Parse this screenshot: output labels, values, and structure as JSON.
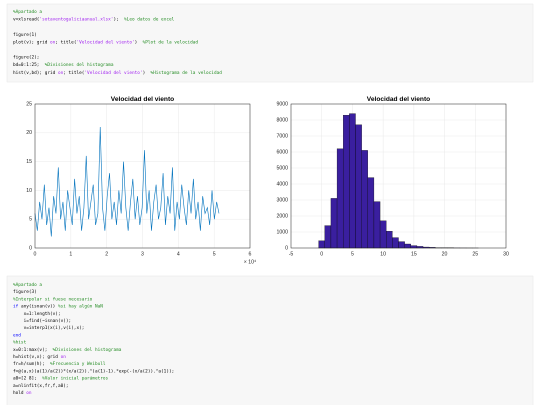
{
  "code_blocks": [
    {
      "lines": [
        [
          {
            "t": "%Apartado a",
            "c": "#228b22"
          }
        ],
        [
          {
            "t": "v=xlsread(",
            "c": "#000000"
          },
          {
            "t": "'sotaventogaliciaanual.xlsx'",
            "c": "#a020f0"
          },
          {
            "t": ");  ",
            "c": "#000000"
          },
          {
            "t": "%Leo datos de excel",
            "c": "#228b22"
          }
        ],
        [],
        [
          {
            "t": "figure(1)",
            "c": "#000000"
          }
        ],
        [
          {
            "t": "plot(v); grid ",
            "c": "#000000"
          },
          {
            "t": "on",
            "c": "#a020f0"
          },
          {
            "t": "; title(",
            "c": "#000000"
          },
          {
            "t": "'Velocidad del viento'",
            "c": "#a020f0"
          },
          {
            "t": ")  ",
            "c": "#000000"
          },
          {
            "t": "%Plot de la velocidad",
            "c": "#228b22"
          }
        ],
        [],
        [
          {
            "t": "figure(2);",
            "c": "#000000"
          }
        ],
        [
          {
            "t": "bd=0:1:25;  ",
            "c": "#000000"
          },
          {
            "t": "%Divisiones del histograma",
            "c": "#228b22"
          }
        ],
        [
          {
            "t": "hist(v,bd); grid ",
            "c": "#000000"
          },
          {
            "t": "on",
            "c": "#a020f0"
          },
          {
            "t": "; title(",
            "c": "#000000"
          },
          {
            "t": "'Velocidad del viento'",
            "c": "#a020f0"
          },
          {
            "t": ")  ",
            "c": "#000000"
          },
          {
            "t": "%Histograma de la velocidad",
            "c": "#228b22"
          }
        ]
      ]
    },
    {
      "lines": [
        [
          {
            "t": "%Apartado a",
            "c": "#228b22"
          }
        ],
        [
          {
            "t": "figure(3)",
            "c": "#000000"
          }
        ],
        [
          {
            "t": "%Interpolar si fuese necesario",
            "c": "#228b22"
          }
        ],
        [
          {
            "t": "if",
            "c": "#0000ff"
          },
          {
            "t": " any(isnan(v)) ",
            "c": "#000000"
          },
          {
            "t": "%si hay algún NaN",
            "c": "#228b22"
          }
        ],
        [
          {
            "t": "    x=1:length(v);",
            "c": "#000000"
          }
        ],
        [
          {
            "t": "    i=find(~isnan(v));",
            "c": "#000000"
          }
        ],
        [
          {
            "t": "    v=interp1(x(i),v(i),x);",
            "c": "#000000"
          }
        ],
        [
          {
            "t": "end",
            "c": "#0000ff"
          }
        ],
        [
          {
            "t": "%hist",
            "c": "#228b22"
          }
        ],
        [
          {
            "t": "x=0:1:max(v);  ",
            "c": "#000000"
          },
          {
            "t": "%Divisiones del histograma",
            "c": "#228b22"
          }
        ],
        [
          {
            "t": "h=hist(v,x); grid ",
            "c": "#000000"
          },
          {
            "t": "on",
            "c": "#a020f0"
          }
        ],
        [
          {
            "t": "fr=h/sum(h);  ",
            "c": "#000000"
          },
          {
            "t": "%Frecuencia y Weibull",
            "c": "#228b22"
          }
        ],
        [
          {
            "t": "f=@(a,x)(a(1)/a(2))*(x/a(2)).^(a(1)-1).*exp(-(x/a(2)).^a(1));",
            "c": "#000000"
          }
        ],
        [
          {
            "t": "a0=[2 8];  ",
            "c": "#000000"
          },
          {
            "t": "%Valor inicial parámetros",
            "c": "#228b22"
          }
        ],
        [
          {
            "t": "a=nlinfit(x,fr,f,a0);",
            "c": "#000000"
          }
        ],
        [
          {
            "t": "hold ",
            "c": "#000000"
          },
          {
            "t": "on",
            "c": "#a020f0"
          }
        ]
      ]
    }
  ],
  "chart_data": [
    {
      "type": "line",
      "title": "Velocidad del viento",
      "x": [
        0,
        650,
        1300,
        1950,
        2600,
        3250,
        3900,
        4550,
        5200,
        5850,
        6500,
        7150,
        7800,
        8450,
        9100,
        9750,
        10400,
        11050,
        11700,
        12350,
        13000,
        13650,
        14300,
        14950,
        15600,
        16250,
        16900,
        17550,
        18200,
        18850,
        19500,
        20150,
        20800,
        21450,
        22100,
        22750,
        23400,
        24050,
        24700,
        25350,
        26000,
        26650,
        27300,
        27950,
        28600,
        29250,
        29900,
        30550,
        31200,
        31850,
        32500,
        33150,
        33800,
        34450,
        35100,
        35750,
        36400,
        37050,
        37700,
        38350,
        39000,
        39650,
        40300,
        40950,
        41600,
        42250,
        42900,
        43550,
        44200,
        44850,
        45500,
        46150,
        46800,
        47450,
        48100,
        48750,
        49400,
        50050,
        50700,
        51350
      ],
      "series": [
        {
          "color": "#0072bd",
          "values": [
            6,
            3,
            8,
            5,
            11,
            4,
            7,
            2,
            9,
            6,
            14,
            5,
            8,
            3,
            10,
            7,
            4,
            12,
            6,
            9,
            3,
            7,
            16,
            5,
            8,
            11,
            4,
            6,
            21,
            7,
            3,
            9,
            13,
            5,
            8,
            4,
            10,
            6,
            15,
            7,
            3,
            8,
            12,
            5,
            9,
            4,
            7,
            17,
            6,
            10,
            3,
            8,
            11,
            5,
            7,
            13,
            4,
            9,
            6,
            14,
            3,
            8,
            5,
            11,
            7,
            4,
            10,
            6,
            12,
            5,
            8,
            3,
            9,
            6,
            7,
            4,
            10,
            5,
            8,
            6
          ]
        }
      ],
      "xlim": [
        0,
        60000
      ],
      "xticks": [
        0,
        {
          "value": 10000,
          "label": "1"
        },
        {
          "value": 20000,
          "label": "2"
        },
        {
          "value": 30000,
          "label": "3"
        },
        {
          "value": 40000,
          "label": "4"
        },
        {
          "value": 50000,
          "label": "5"
        },
        {
          "value": 60000,
          "label": "6"
        }
      ],
      "x_exponent": "× 10⁴",
      "ylim": [
        0,
        25
      ],
      "yticks": [
        0,
        5,
        10,
        15,
        20,
        25
      ],
      "grid": true
    },
    {
      "type": "histogram",
      "title": "Velocidad del viento",
      "bins": [
        -0.5,
        0.5,
        1.5,
        2.5,
        3.5,
        4.5,
        5.5,
        6.5,
        7.5,
        8.5,
        9.5,
        10.5,
        11.5,
        12.5,
        13.5,
        14.5,
        15.5,
        16.5,
        17.5,
        18.5,
        19.5,
        20.5,
        21.5,
        22.5,
        23.5,
        24.5,
        25.5
      ],
      "counts": [
        450,
        1400,
        3100,
        6200,
        8300,
        8400,
        7700,
        6100,
        4400,
        2900,
        1700,
        1050,
        650,
        400,
        250,
        150,
        100,
        60,
        40,
        20,
        15,
        10,
        5,
        3,
        2,
        1
      ],
      "color": "#3a1f9f",
      "xlim": [
        -5,
        30
      ],
      "xticks": [
        -5,
        0,
        5,
        10,
        15,
        20,
        25,
        30
      ],
      "ylim": [
        0,
        9000
      ],
      "yticks": [
        0,
        1000,
        2000,
        3000,
        4000,
        5000,
        6000,
        7000,
        8000,
        9000
      ],
      "grid": true
    }
  ]
}
